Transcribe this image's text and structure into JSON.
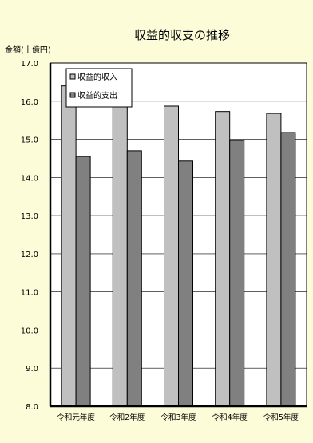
{
  "chart_data": {
    "type": "bar",
    "title": "収益的収支の推移",
    "ylabel": "金額(十億円)",
    "xlabel": "",
    "categories": [
      "令和元年度",
      "令和2年度",
      "令和3年度",
      "令和4年度",
      "令和5年度"
    ],
    "series": [
      {
        "name": "収益的収入",
        "values": [
          16.4,
          16.0,
          15.87,
          15.73,
          15.68
        ],
        "color": "#c0c0c0"
      },
      {
        "name": "収益的支出",
        "values": [
          14.55,
          14.7,
          14.43,
          14.97,
          15.18
        ],
        "color": "#808080"
      }
    ],
    "ylim": [
      8.0,
      17.0
    ],
    "yticks": [
      "8.0",
      "9.0",
      "10.0",
      "11.0",
      "12.0",
      "13.0",
      "14.0",
      "15.0",
      "16.0",
      "17.0"
    ],
    "grid": true,
    "legend_position": "top-left",
    "background": "#fcfcd8",
    "plot_background": "#ffffff"
  }
}
